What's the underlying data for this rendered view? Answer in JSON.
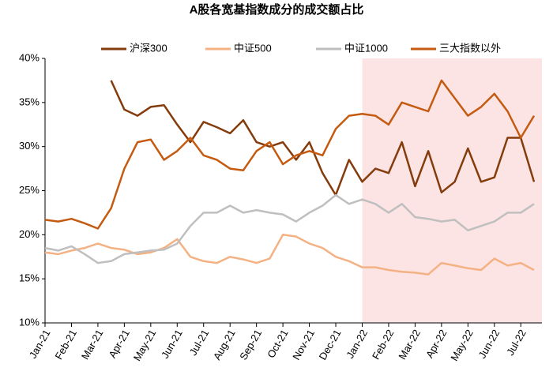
{
  "chart_data": {
    "type": "line",
    "title": "A股各宽基指数成分的成交额占比",
    "x": [
      0,
      0.5,
      1,
      1.5,
      2,
      2.5,
      3,
      3.5,
      4,
      4.5,
      5,
      5.5,
      6,
      6.5,
      7,
      7.5,
      8,
      8.5,
      9,
      9.5,
      10,
      10.5,
      11,
      11.5,
      12,
      12.5,
      13,
      13.5,
      14,
      14.5,
      15,
      15.5,
      16,
      16.5,
      17,
      17.5,
      18,
      18.5
    ],
    "xlim": [
      0,
      18.8
    ],
    "xticks": [
      {
        "value": 0,
        "label": "Jan-21"
      },
      {
        "value": 1,
        "label": "Feb-21"
      },
      {
        "value": 2,
        "label": "Mar-21"
      },
      {
        "value": 3,
        "label": "Apr-21"
      },
      {
        "value": 4,
        "label": "May-21"
      },
      {
        "value": 5,
        "label": "Jun-21"
      },
      {
        "value": 6,
        "label": "Jul-21"
      },
      {
        "value": 7,
        "label": "Aug-21"
      },
      {
        "value": 8,
        "label": "Sep-21"
      },
      {
        "value": 9,
        "label": "Oct-21"
      },
      {
        "value": 10,
        "label": "Nov-21"
      },
      {
        "value": 11,
        "label": "Dec-21"
      },
      {
        "value": 12,
        "label": "Jan-22"
      },
      {
        "value": 13,
        "label": "Feb-22"
      },
      {
        "value": 14,
        "label": "Mar-22"
      },
      {
        "value": 15,
        "label": "Apr-22"
      },
      {
        "value": 16,
        "label": "May-22"
      },
      {
        "value": 17,
        "label": "Jun-22"
      },
      {
        "value": 18,
        "label": "Jul-22"
      }
    ],
    "ylim": [
      10,
      40
    ],
    "yticks": [
      {
        "value": 10,
        "label": "10%"
      },
      {
        "value": 15,
        "label": "15%"
      },
      {
        "value": 20,
        "label": "20%"
      },
      {
        "value": 25,
        "label": "25%"
      },
      {
        "value": 30,
        "label": "30%"
      },
      {
        "value": 35,
        "label": "35%"
      },
      {
        "value": 40,
        "label": "40%"
      }
    ],
    "highlight_range": [
      12,
      18.8
    ],
    "highlight_color": "#fde4e4",
    "series": [
      {
        "name": "沪深300",
        "color": "#843c0c",
        "values": [
          null,
          null,
          null,
          null,
          null,
          37.5,
          34.2,
          33.5,
          34.5,
          34.7,
          32.5,
          30.5,
          32.8,
          32.2,
          31.5,
          33,
          30.5,
          30,
          30.5,
          28.5,
          30.5,
          27,
          24.5,
          28.5,
          26,
          27.5,
          27,
          30.5,
          25.5,
          29.5,
          24.8,
          26,
          29.8,
          26,
          26.5,
          31,
          31,
          26
        ]
      },
      {
        "name": "中证500",
        "color": "#f4b183",
        "values": [
          18,
          17.8,
          18.2,
          18.5,
          19,
          18.5,
          18.3,
          17.8,
          18,
          18.5,
          19.5,
          17.5,
          17,
          16.8,
          17.5,
          17.2,
          16.8,
          17.3,
          20,
          19.8,
          19,
          18.5,
          17.5,
          17,
          16.3,
          16.3,
          16,
          15.8,
          15.7,
          15.5,
          16.8,
          16.5,
          16.2,
          16,
          17.3,
          16.5,
          16.8,
          16
        ]
      },
      {
        "name": "中证1000",
        "color": "#bfbfbf",
        "values": [
          18.5,
          18.2,
          18.7,
          17.8,
          16.8,
          17,
          17.8,
          18,
          18.2,
          18.3,
          19,
          21,
          22.5,
          22.5,
          23.3,
          22.5,
          22.8,
          22.5,
          22.3,
          21.5,
          22.5,
          23.3,
          24.5,
          23.5,
          24,
          23.5,
          22.5,
          23.5,
          22,
          21.8,
          21.5,
          21.7,
          20.5,
          21,
          21.5,
          22.5,
          22.5,
          23.5
        ]
      },
      {
        "name": "三大指数以外",
        "color": "#c55a11",
        "values": [
          21.7,
          21.5,
          21.8,
          21.3,
          20.7,
          23,
          27.5,
          30.5,
          30.8,
          28.5,
          29.5,
          31,
          29,
          28.5,
          27.5,
          27.3,
          29.5,
          30.5,
          28,
          29,
          29.5,
          29,
          32,
          33.5,
          33.7,
          33.5,
          32.5,
          35,
          34.5,
          34,
          37.5,
          35.5,
          33.5,
          34.5,
          36,
          34,
          31,
          33.5
        ]
      }
    ]
  }
}
